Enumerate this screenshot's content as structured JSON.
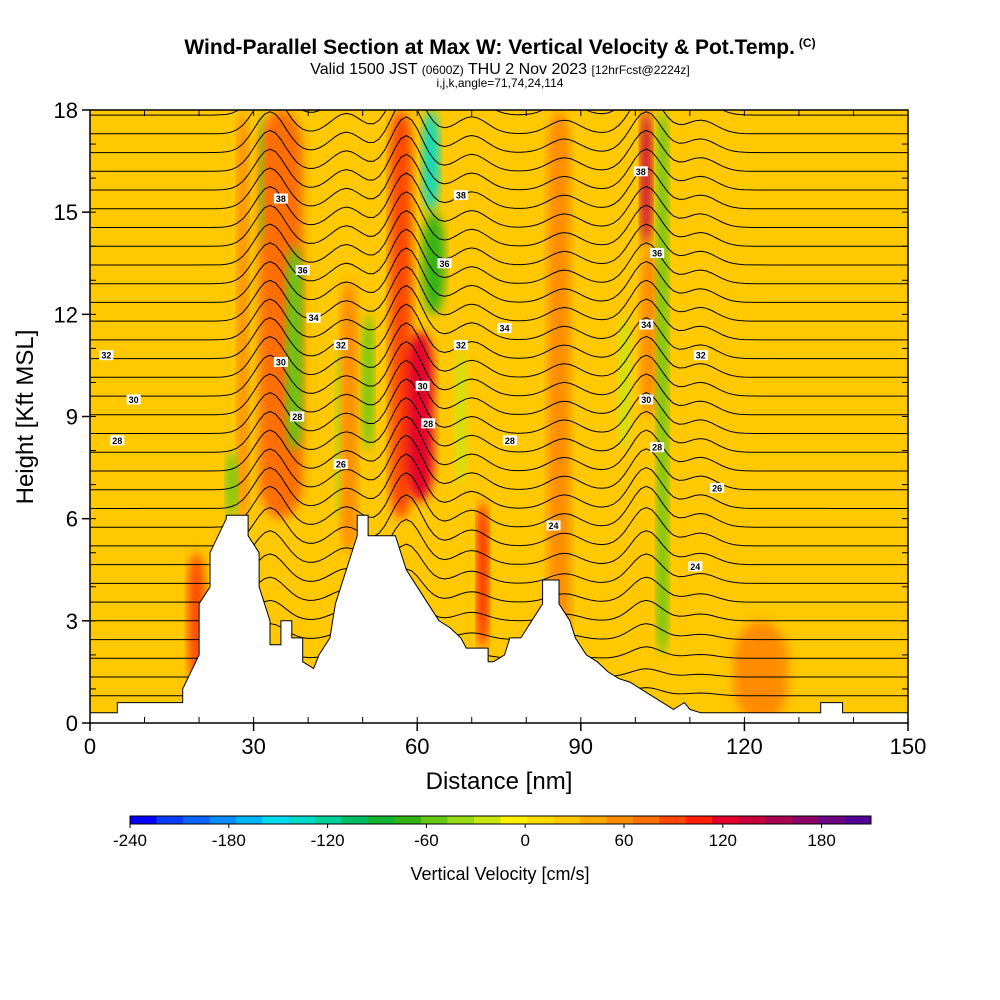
{
  "title": {
    "main": "Wind-Parallel Section at Max W: Vertical Velocity & Pot.Temp.",
    "copyright": "(C)",
    "valid_prefix": "Valid 1500 JST",
    "valid_utc": "(0600Z)",
    "valid_date": "THU 2 Nov 2023",
    "forecast": "[12hrFcst@2224z]",
    "params": "i,j,k,angle=71,74,24,114"
  },
  "chart_data": {
    "type": "heatmap",
    "xlabel": "Distance [nm]",
    "ylabel": "Height [Kft MSL]",
    "xlim": [
      0,
      150
    ],
    "ylim": [
      0,
      18
    ],
    "xticks": [
      "0",
      "30",
      "60",
      "90",
      "120",
      "150"
    ],
    "yticks": [
      "0",
      "3",
      "6",
      "9",
      "12",
      "15",
      "18"
    ],
    "colorbar": {
      "label": "Vertical Velocity [cm/s]",
      "ticks": [
        "-240",
        "-180",
        "-120",
        "-60",
        "0",
        "60",
        "120",
        "180"
      ],
      "min": -240,
      "max": 210,
      "colors": [
        "#0000ff",
        "#0a3cff",
        "#0a64ff",
        "#0a8cff",
        "#00b4ff",
        "#00dcf0",
        "#00dcc8",
        "#00d296",
        "#00be64",
        "#14b432",
        "#32b414",
        "#64c814",
        "#96dc14",
        "#c8e614",
        "#fff000",
        "#ffdc00",
        "#ffc800",
        "#ffaa00",
        "#ff8c00",
        "#ff6e00",
        "#ff4600",
        "#ff1e00",
        "#e6002a",
        "#c8003c",
        "#aa0050",
        "#8c0064",
        "#6e0082",
        "#500096"
      ]
    },
    "background_w": 20,
    "updrafts": [
      {
        "x0": 31,
        "x1": 39,
        "y0": 6,
        "y1": 18,
        "w": 80
      },
      {
        "x0": 18,
        "x1": 21,
        "y0": 1.2,
        "y1": 5,
        "w": 90
      },
      {
        "x0": 27,
        "x1": 29,
        "y0": 6,
        "y1": 18,
        "w": 60
      },
      {
        "x0": 46,
        "x1": 49,
        "y0": 5,
        "y1": 13,
        "w": 60
      },
      {
        "x0": 55,
        "x1": 59,
        "y0": 6,
        "y1": 18,
        "w": 90
      },
      {
        "x0": 58,
        "x1": 63,
        "y0": 6.5,
        "y1": 11.5,
        "w": 120
      },
      {
        "x0": 71,
        "x1": 73,
        "y0": 2.2,
        "y1": 6.5,
        "w": 110
      },
      {
        "x0": 101,
        "x1": 103,
        "y0": 14,
        "y1": 18,
        "w": 130
      },
      {
        "x0": 101,
        "x1": 104,
        "y0": 9,
        "y1": 14,
        "w": 60
      },
      {
        "x0": 84,
        "x1": 88,
        "y0": 0.4,
        "y1": 18,
        "w": 50
      },
      {
        "x0": 118,
        "x1": 128,
        "y0": 0,
        "y1": 3,
        "w": 50
      }
    ],
    "downdrafts": [
      {
        "x0": 61,
        "x1": 64,
        "y0": 15,
        "y1": 18,
        "w": -130
      },
      {
        "x0": 61,
        "x1": 65,
        "y0": 12,
        "y1": 15,
        "w": -70
      },
      {
        "x0": 36,
        "x1": 39,
        "y0": 8,
        "y1": 14,
        "w": -60
      },
      {
        "x0": 31,
        "x1": 32,
        "y0": 14,
        "y1": 18,
        "w": -50
      },
      {
        "x0": 45,
        "x1": 46,
        "y0": 6,
        "y1": 11,
        "w": -40
      },
      {
        "x0": 50,
        "x1": 52,
        "y0": 8,
        "y1": 12,
        "w": -50
      },
      {
        "x0": 104,
        "x1": 106,
        "y0": 2,
        "y1": 18,
        "w": -50
      },
      {
        "x0": 25,
        "x1": 27,
        "y0": 6,
        "y1": 8,
        "w": -50
      },
      {
        "x0": 67,
        "x1": 69,
        "y0": 7,
        "y1": 11,
        "w": -30
      },
      {
        "x0": 97,
        "x1": 99,
        "y0": 8,
        "y1": 12,
        "w": -30
      }
    ],
    "terrain": [
      [
        0,
        0.3
      ],
      [
        5,
        0.3
      ],
      [
        5,
        0.6
      ],
      [
        17,
        0.6
      ],
      [
        17,
        1
      ],
      [
        20,
        2
      ],
      [
        20,
        3.5
      ],
      [
        22,
        4
      ],
      [
        22,
        5
      ],
      [
        25,
        6
      ],
      [
        25,
        6.1
      ],
      [
        29,
        6.1
      ],
      [
        29,
        5.5
      ],
      [
        31,
        5
      ],
      [
        31,
        4
      ],
      [
        33,
        3
      ],
      [
        33,
        2.3
      ],
      [
        35,
        2.3
      ],
      [
        35,
        3
      ],
      [
        37,
        3
      ],
      [
        37,
        2.5
      ],
      [
        39,
        2.5
      ],
      [
        39,
        1.8
      ],
      [
        41,
        1.6
      ],
      [
        42,
        2
      ],
      [
        44,
        2.5
      ],
      [
        45,
        3.5
      ],
      [
        47,
        4.5
      ],
      [
        49,
        5.5
      ],
      [
        49,
        6.1
      ],
      [
        51,
        6.1
      ],
      [
        51,
        5.5
      ],
      [
        56,
        5.5
      ],
      [
        58,
        4.5
      ],
      [
        60,
        4
      ],
      [
        62,
        3.5
      ],
      [
        64,
        3
      ],
      [
        66,
        2.8
      ],
      [
        68,
        2.5
      ],
      [
        69,
        2.2
      ],
      [
        73,
        2.2
      ],
      [
        73,
        1.8
      ],
      [
        74,
        1.8
      ],
      [
        76,
        2
      ],
      [
        77,
        2.5
      ],
      [
        79,
        2.5
      ],
      [
        81,
        3
      ],
      [
        83,
        3.5
      ],
      [
        83,
        4.2
      ],
      [
        86,
        4.2
      ],
      [
        86,
        3.5
      ],
      [
        88,
        3
      ],
      [
        89,
        2.5
      ],
      [
        91,
        2
      ],
      [
        93,
        1.8
      ],
      [
        95,
        1.5
      ],
      [
        97,
        1.3
      ],
      [
        99,
        1.2
      ],
      [
        101,
        1
      ],
      [
        103,
        0.8
      ],
      [
        105,
        0.6
      ],
      [
        107,
        0.4
      ],
      [
        109,
        0.6
      ],
      [
        110,
        0.4
      ],
      [
        112,
        0.3
      ],
      [
        122,
        0.3
      ],
      [
        124,
        0.3
      ],
      [
        128,
        0.3
      ],
      [
        130,
        0.3
      ],
      [
        134,
        0.3
      ],
      [
        134,
        0.6
      ],
      [
        138,
        0.6
      ],
      [
        138,
        0.3
      ],
      [
        150,
        0.3
      ]
    ],
    "theta_labels": [
      {
        "text": "38",
        "x": 35,
        "y": 15.4
      },
      {
        "text": "38",
        "x": 68,
        "y": 15.5
      },
      {
        "text": "38",
        "x": 101,
        "y": 16.2
      },
      {
        "text": "36",
        "x": 39,
        "y": 13.3
      },
      {
        "text": "36",
        "x": 65,
        "y": 13.5
      },
      {
        "text": "36",
        "x": 104,
        "y": 13.8
      },
      {
        "text": "34",
        "x": 41,
        "y": 11.9
      },
      {
        "text": "34",
        "x": 76,
        "y": 11.6
      },
      {
        "text": "34",
        "x": 102,
        "y": 11.7
      },
      {
        "text": "32",
        "x": 3,
        "y": 10.8
      },
      {
        "text": "32",
        "x": 46,
        "y": 11.1
      },
      {
        "text": "32",
        "x": 68,
        "y": 11.1
      },
      {
        "text": "32",
        "x": 112,
        "y": 10.8
      },
      {
        "text": "30",
        "x": 8,
        "y": 9.5
      },
      {
        "text": "30",
        "x": 35,
        "y": 10.6
      },
      {
        "text": "30",
        "x": 61,
        "y": 9.9
      },
      {
        "text": "30",
        "x": 102,
        "y": 9.5
      },
      {
        "text": "28",
        "x": 5,
        "y": 8.3
      },
      {
        "text": "28",
        "x": 38,
        "y": 9.0
      },
      {
        "text": "28",
        "x": 62,
        "y": 8.8
      },
      {
        "text": "28",
        "x": 77,
        "y": 8.3
      },
      {
        "text": "28",
        "x": 104,
        "y": 8.1
      },
      {
        "text": "26",
        "x": 46,
        "y": 7.6
      },
      {
        "text": "26",
        "x": 115,
        "y": 6.9
      },
      {
        "text": "24",
        "x": 85,
        "y": 5.8
      },
      {
        "text": "24",
        "x": 111,
        "y": 4.6
      }
    ]
  }
}
